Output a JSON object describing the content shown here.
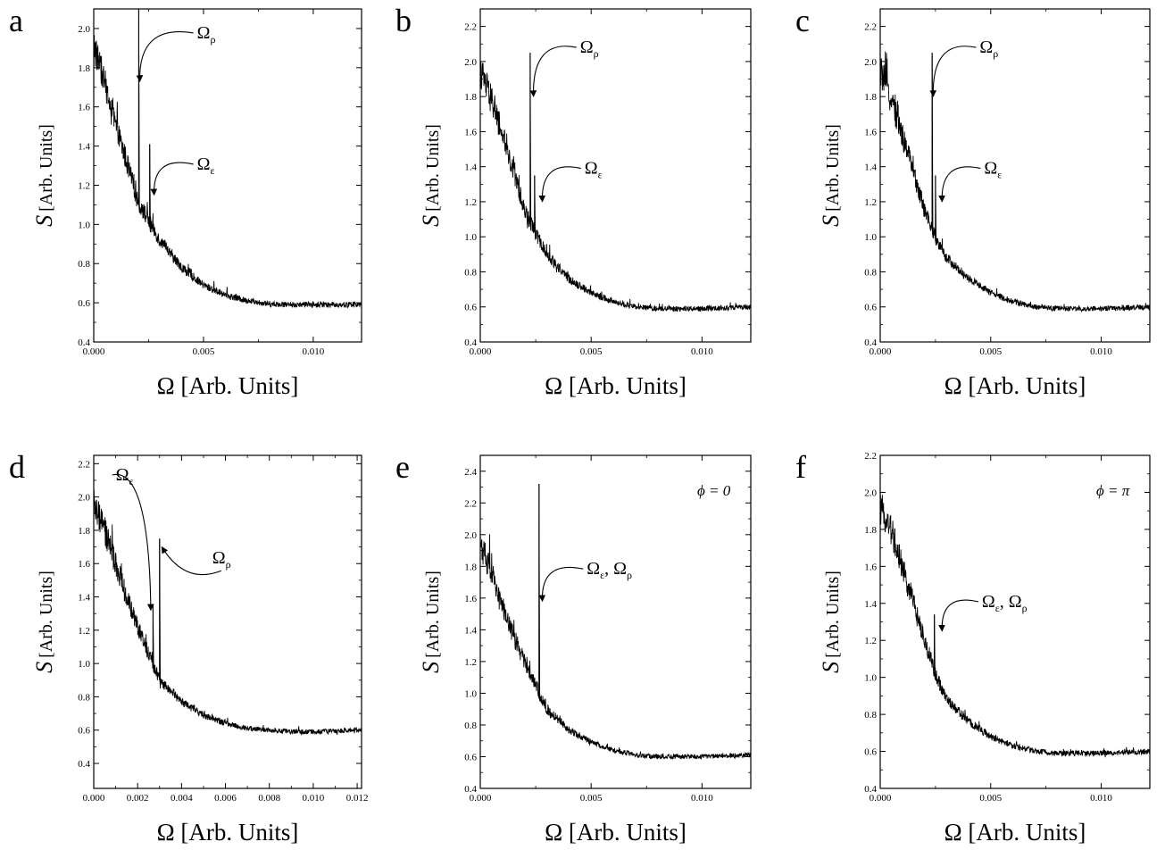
{
  "chart_data": [
    {
      "panel": "a",
      "type": "line",
      "xlabel": "Ω [Arb. Units]",
      "ylabel_symbol": "S",
      "ylabel_units": "[Arb. Units]",
      "xlim": [
        0,
        0.0122
      ],
      "ylim": [
        0.4,
        2.1
      ],
      "xticks": [
        0.0,
        0.005,
        0.01
      ],
      "xtick_labels": [
        "0.000",
        "0.005",
        "0.010"
      ],
      "yticks": [
        0.4,
        0.6,
        0.8,
        1.0,
        1.2,
        1.4,
        1.6,
        1.8,
        2.0
      ],
      "ytick_labels": [
        "0.4",
        "0.6",
        "0.8",
        "1.0",
        "1.2",
        "1.4",
        "1.6",
        "1.8",
        "2.0"
      ],
      "baseline": [
        [
          0.0,
          1.92
        ],
        [
          0.0005,
          1.72
        ],
        [
          0.001,
          1.5
        ],
        [
          0.0015,
          1.32
        ],
        [
          0.002,
          1.12
        ],
        [
          0.0025,
          1.02
        ],
        [
          0.003,
          0.92
        ],
        [
          0.004,
          0.78
        ],
        [
          0.005,
          0.69
        ],
        [
          0.006,
          0.64
        ],
        [
          0.007,
          0.61
        ],
        [
          0.008,
          0.595
        ],
        [
          0.009,
          0.59
        ],
        [
          0.01,
          0.59
        ],
        [
          0.0122,
          0.59
        ]
      ],
      "peaks": [
        {
          "x": 0.00205,
          "y": 2.1
        },
        {
          "x": 0.00255,
          "y": 1.41
        }
      ],
      "annotations": [
        {
          "text": "Ω",
          "sub": "ρ",
          "label_x": 0.0047,
          "label_y": 1.95,
          "target_x": 0.0021,
          "target_y": 1.73
        },
        {
          "text": "Ω",
          "sub": "ε",
          "label_x": 0.0047,
          "label_y": 1.28,
          "target_x": 0.00275,
          "target_y": 1.15
        }
      ],
      "phi": ""
    },
    {
      "panel": "b",
      "type": "line",
      "xlabel": "Ω [Arb. Units]",
      "ylabel_symbol": "S",
      "ylabel_units": "[Arb. Units]",
      "xlim": [
        0,
        0.0122
      ],
      "ylim": [
        0.4,
        2.3
      ],
      "xticks": [
        0.0,
        0.005,
        0.01
      ],
      "xtick_labels": [
        "0.000",
        "0.005",
        "0.010"
      ],
      "yticks": [
        0.4,
        0.6,
        0.8,
        1.0,
        1.2,
        1.4,
        1.6,
        1.8,
        2.0,
        2.2
      ],
      "ytick_labels": [
        "0.4",
        "0.6",
        "0.8",
        "1.0",
        "1.2",
        "1.4",
        "1.6",
        "1.8",
        "2.0",
        "2.2"
      ],
      "baseline": [
        [
          0.0,
          1.95
        ],
        [
          0.0005,
          1.78
        ],
        [
          0.001,
          1.58
        ],
        [
          0.0015,
          1.38
        ],
        [
          0.002,
          1.15
        ],
        [
          0.0025,
          1.02
        ],
        [
          0.003,
          0.9
        ],
        [
          0.004,
          0.76
        ],
        [
          0.005,
          0.68
        ],
        [
          0.006,
          0.63
        ],
        [
          0.007,
          0.6
        ],
        [
          0.008,
          0.59
        ],
        [
          0.009,
          0.59
        ],
        [
          0.01,
          0.59
        ],
        [
          0.0122,
          0.6
        ]
      ],
      "peaks": [
        {
          "x": 0.00225,
          "y": 2.05
        },
        {
          "x": 0.00245,
          "y": 1.35
        }
      ],
      "annotations": [
        {
          "text": "Ω",
          "sub": "ρ",
          "label_x": 0.0045,
          "label_y": 2.05,
          "target_x": 0.0024,
          "target_y": 1.8
        },
        {
          "text": "Ω",
          "sub": "ε",
          "label_x": 0.0047,
          "label_y": 1.36,
          "target_x": 0.0028,
          "target_y": 1.2
        }
      ],
      "phi": ""
    },
    {
      "panel": "c",
      "type": "line",
      "xlabel": "Ω [Arb. Units]",
      "ylabel_symbol": "S",
      "ylabel_units": "[Arb. Units]",
      "xlim": [
        0,
        0.0122
      ],
      "ylim": [
        0.4,
        2.3
      ],
      "xticks": [
        0.0,
        0.005,
        0.01
      ],
      "xtick_labels": [
        "0.000",
        "0.005",
        "0.010"
      ],
      "yticks": [
        0.4,
        0.6,
        0.8,
        1.0,
        1.2,
        1.4,
        1.6,
        1.8,
        2.0,
        2.2
      ],
      "ytick_labels": [
        "0.4",
        "0.6",
        "0.8",
        "1.0",
        "1.2",
        "1.4",
        "1.6",
        "1.8",
        "2.0",
        "2.2"
      ],
      "baseline": [
        [
          0.0,
          1.95
        ],
        [
          0.0005,
          1.78
        ],
        [
          0.001,
          1.58
        ],
        [
          0.0015,
          1.38
        ],
        [
          0.002,
          1.15
        ],
        [
          0.0025,
          1.0
        ],
        [
          0.003,
          0.88
        ],
        [
          0.004,
          0.76
        ],
        [
          0.005,
          0.68
        ],
        [
          0.006,
          0.63
        ],
        [
          0.007,
          0.6
        ],
        [
          0.008,
          0.59
        ],
        [
          0.009,
          0.59
        ],
        [
          0.01,
          0.59
        ],
        [
          0.0122,
          0.6
        ]
      ],
      "peaks": [
        {
          "x": 0.00235,
          "y": 2.05
        },
        {
          "x": 0.0025,
          "y": 1.35
        }
      ],
      "annotations": [
        {
          "text": "Ω",
          "sub": "ρ",
          "label_x": 0.0045,
          "label_y": 2.05,
          "target_x": 0.0024,
          "target_y": 1.8
        },
        {
          "text": "Ω",
          "sub": "ε",
          "label_x": 0.0047,
          "label_y": 1.36,
          "target_x": 0.0028,
          "target_y": 1.2
        }
      ],
      "phi": ""
    },
    {
      "panel": "d",
      "type": "line",
      "xlabel": "Ω [Arb. Units]",
      "ylabel_symbol": "S",
      "ylabel_units": "[Arb. Units]",
      "xlim": [
        0,
        0.0122
      ],
      "ylim": [
        0.25,
        2.25
      ],
      "xticks": [
        0.0,
        0.002,
        0.004,
        0.006,
        0.008,
        0.01,
        0.012
      ],
      "xtick_labels": [
        "0.000",
        "0.002",
        "0.004",
        "0.006",
        "0.008",
        "0.010",
        "0.012"
      ],
      "yticks": [
        0.4,
        0.6,
        0.8,
        1.0,
        1.2,
        1.4,
        1.6,
        1.8,
        2.0,
        2.2
      ],
      "ytick_labels": [
        "0.4",
        "0.6",
        "0.8",
        "1.0",
        "1.2",
        "1.4",
        "1.6",
        "1.8",
        "2.0",
        "2.2"
      ],
      "baseline": [
        [
          0.0,
          1.95
        ],
        [
          0.0005,
          1.8
        ],
        [
          0.001,
          1.6
        ],
        [
          0.0015,
          1.4
        ],
        [
          0.002,
          1.22
        ],
        [
          0.0025,
          1.06
        ],
        [
          0.003,
          0.9
        ],
        [
          0.004,
          0.77
        ],
        [
          0.005,
          0.69
        ],
        [
          0.006,
          0.64
        ],
        [
          0.007,
          0.61
        ],
        [
          0.008,
          0.6
        ],
        [
          0.009,
          0.59
        ],
        [
          0.01,
          0.59
        ],
        [
          0.0122,
          0.6
        ]
      ],
      "peaks": [
        {
          "x": 0.0027,
          "y": 1.35
        },
        {
          "x": 0.003,
          "y": 1.75
        }
      ],
      "annotations": [
        {
          "text": "Ω",
          "sub": "ε",
          "label_x": 0.001,
          "label_y": 2.1,
          "target_x": 0.0026,
          "target_y": 1.32
        },
        {
          "text": "Ω",
          "sub": "ρ",
          "label_x": 0.0054,
          "label_y": 1.6,
          "target_x": 0.0031,
          "target_y": 1.7
        }
      ],
      "phi": ""
    },
    {
      "panel": "e",
      "type": "line",
      "xlabel": "Ω [Arb. Units]",
      "ylabel_symbol": "S",
      "ylabel_units": "[Arb. Units]",
      "xlim": [
        0,
        0.0122
      ],
      "ylim": [
        0.4,
        2.5
      ],
      "xticks": [
        0.0,
        0.005,
        0.01
      ],
      "xtick_labels": [
        "0.000",
        "0.005",
        "0.010"
      ],
      "yticks": [
        0.4,
        0.6,
        0.8,
        1.0,
        1.2,
        1.4,
        1.6,
        1.8,
        2.0,
        2.2,
        2.4
      ],
      "ytick_labels": [
        "0.4",
        "0.6",
        "0.8",
        "1.0",
        "1.2",
        "1.4",
        "1.6",
        "1.8",
        "2.0",
        "2.2",
        "2.4"
      ],
      "baseline": [
        [
          0.0,
          1.95
        ],
        [
          0.0005,
          1.76
        ],
        [
          0.001,
          1.55
        ],
        [
          0.0015,
          1.36
        ],
        [
          0.002,
          1.2
        ],
        [
          0.0025,
          1.06
        ],
        [
          0.0027,
          0.98
        ],
        [
          0.003,
          0.9
        ],
        [
          0.004,
          0.77
        ],
        [
          0.005,
          0.69
        ],
        [
          0.006,
          0.64
        ],
        [
          0.007,
          0.61
        ],
        [
          0.008,
          0.6
        ],
        [
          0.009,
          0.6
        ],
        [
          0.01,
          0.6
        ],
        [
          0.0122,
          0.61
        ]
      ],
      "peaks": [
        {
          "x": 0.00265,
          "y": 2.32
        }
      ],
      "annotations": [
        {
          "text": "Ω",
          "sub": "ε",
          "text2": "Ω",
          "sub2": "ρ",
          "label_x": 0.0048,
          "label_y": 1.75,
          "target_x": 0.0028,
          "target_y": 1.58
        }
      ],
      "phi": "ϕ = 0"
    },
    {
      "panel": "f",
      "type": "line",
      "xlabel": "Ω [Arb. Units]",
      "ylabel_symbol": "S",
      "ylabel_units": "[Arb. Units]",
      "xlim": [
        0,
        0.0122
      ],
      "ylim": [
        0.4,
        2.2
      ],
      "xticks": [
        0.0,
        0.005,
        0.01
      ],
      "xtick_labels": [
        "0.000",
        "0.005",
        "0.010"
      ],
      "yticks": [
        0.4,
        0.6,
        0.8,
        1.0,
        1.2,
        1.4,
        1.6,
        1.8,
        2.0,
        2.2
      ],
      "ytick_labels": [
        "0.4",
        "0.6",
        "0.8",
        "1.0",
        "1.2",
        "1.4",
        "1.6",
        "1.8",
        "2.0",
        "2.2"
      ],
      "baseline": [
        [
          0.0,
          1.92
        ],
        [
          0.0005,
          1.8
        ],
        [
          0.001,
          1.6
        ],
        [
          0.0015,
          1.4
        ],
        [
          0.002,
          1.2
        ],
        [
          0.0025,
          1.02
        ],
        [
          0.003,
          0.88
        ],
        [
          0.004,
          0.76
        ],
        [
          0.005,
          0.68
        ],
        [
          0.006,
          0.63
        ],
        [
          0.007,
          0.6
        ],
        [
          0.008,
          0.59
        ],
        [
          0.009,
          0.59
        ],
        [
          0.01,
          0.59
        ],
        [
          0.0122,
          0.6
        ]
      ],
      "peaks": [
        {
          "x": 0.00245,
          "y": 1.34
        }
      ],
      "annotations": [
        {
          "text": "Ω",
          "sub": "ε",
          "text2": "Ω",
          "sub2": "ρ",
          "label_x": 0.0046,
          "label_y": 1.38,
          "target_x": 0.0028,
          "target_y": 1.25
        }
      ],
      "phi": "ϕ = π"
    }
  ]
}
